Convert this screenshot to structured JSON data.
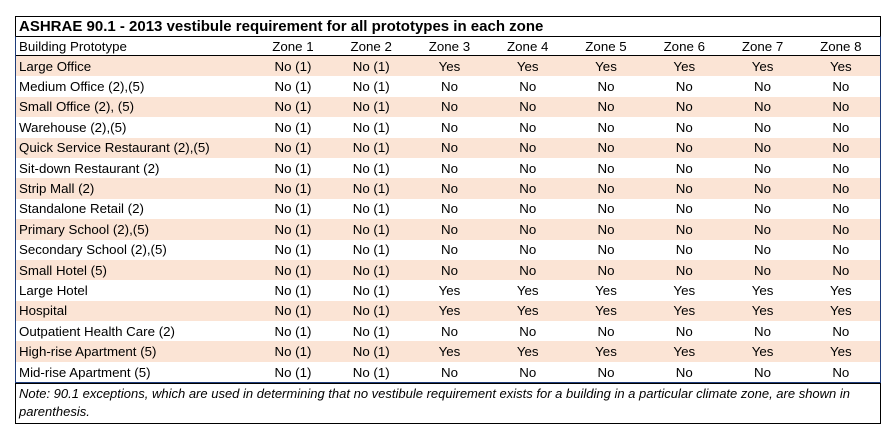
{
  "table": {
    "title": "ASHRAE 90.1 - 2013 vestibule requirement for all prototypes in each zone",
    "headers": [
      "Building Prototype",
      "Zone 1",
      "Zone 2",
      "Zone 3",
      "Zone 4",
      "Zone 5",
      "Zone 6",
      "Zone 7",
      "Zone 8"
    ],
    "rows": [
      [
        "Large Office",
        "No (1)",
        "No (1)",
        "Yes",
        "Yes",
        "Yes",
        "Yes",
        "Yes",
        "Yes"
      ],
      [
        "Medium Office (2),(5)",
        "No (1)",
        "No (1)",
        "No",
        "No",
        "No",
        "No",
        "No",
        "No"
      ],
      [
        "Small Office (2), (5)",
        "No (1)",
        "No (1)",
        "No",
        "No",
        "No",
        "No",
        "No",
        "No"
      ],
      [
        "Warehouse (2),(5)",
        "No (1)",
        "No (1)",
        "No",
        "No",
        "No",
        "No",
        "No",
        "No"
      ],
      [
        "Quick Service Restaurant (2),(5)",
        "No (1)",
        "No (1)",
        "No",
        "No",
        "No",
        "No",
        "No",
        "No"
      ],
      [
        "Sit-down Restaurant (2)",
        "No (1)",
        "No (1)",
        "No",
        "No",
        "No",
        "No",
        "No",
        "No"
      ],
      [
        "Strip Mall (2)",
        "No (1)",
        "No (1)",
        "No",
        "No",
        "No",
        "No",
        "No",
        "No"
      ],
      [
        "Standalone Retail (2)",
        "No (1)",
        "No (1)",
        "No",
        "No",
        "No",
        "No",
        "No",
        "No"
      ],
      [
        "Primary School (2),(5)",
        "No (1)",
        "No (1)",
        "No",
        "No",
        "No",
        "No",
        "No",
        "No"
      ],
      [
        "Secondary School (2),(5)",
        "No (1)",
        "No (1)",
        "No",
        "No",
        "No",
        "No",
        "No",
        "No"
      ],
      [
        "Small Hotel (5)",
        "No (1)",
        "No (1)",
        "No",
        "No",
        "No",
        "No",
        "No",
        "No"
      ],
      [
        "Large Hotel",
        "No (1)",
        "No (1)",
        "Yes",
        "Yes",
        "Yes",
        "Yes",
        "Yes",
        "Yes"
      ],
      [
        "Hospital",
        "No (1)",
        "No (1)",
        "Yes",
        "Yes",
        "Yes",
        "Yes",
        "Yes",
        "Yes"
      ],
      [
        "Outpatient Health Care (2)",
        "No (1)",
        "No (1)",
        "No",
        "No",
        "No",
        "No",
        "No",
        "No"
      ],
      [
        "High-rise Apartment (5)",
        "No (1)",
        "No (1)",
        "Yes",
        "Yes",
        "Yes",
        "Yes",
        "Yes",
        "Yes"
      ],
      [
        "Mid-rise Apartment (5)",
        "No (1)",
        "No (1)",
        "No",
        "No",
        "No",
        "No",
        "No",
        "No"
      ]
    ],
    "note": "Note: 90.1 exceptions, which are used in determining that no vestibule requirement exists for a building in a particular climate zone, are shown in parenthesis."
  },
  "colors": {
    "shaded_row": "#fbe4d5",
    "frame": "#1f3d7a"
  }
}
